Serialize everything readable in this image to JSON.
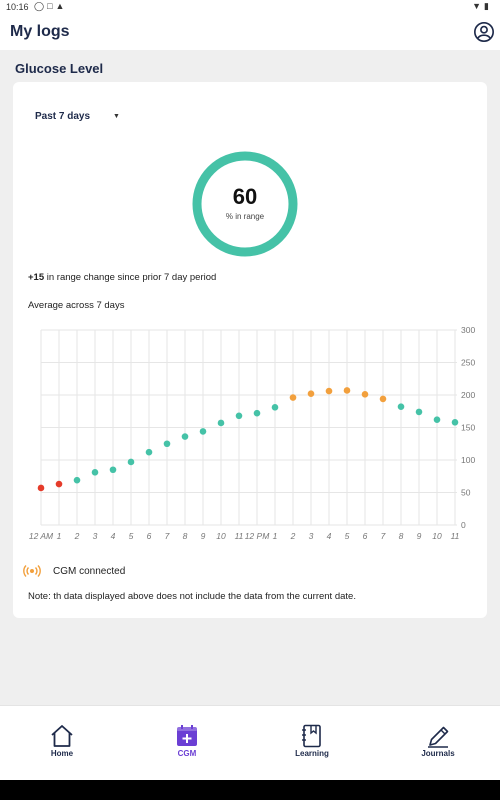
{
  "status_bar": {
    "time": "10:16"
  },
  "header": {
    "title": "My logs"
  },
  "section": {
    "title": "Glucose Level"
  },
  "filter": {
    "selected": "Past 7 days"
  },
  "gauge": {
    "value": "60",
    "label": "% in range",
    "fraction": 0.6
  },
  "change": {
    "delta": "+15",
    "text": " in range change since prior 7 day period"
  },
  "average": {
    "text": "Average across 7 days"
  },
  "chart_data": {
    "type": "scatter",
    "categories": [
      "12 AM",
      "1",
      "2",
      "3",
      "4",
      "5",
      "6",
      "7",
      "8",
      "9",
      "10",
      "11",
      "12 PM",
      "1",
      "2",
      "3",
      "4",
      "5",
      "6",
      "7",
      "8",
      "9",
      "10",
      "11"
    ],
    "values": [
      57,
      63,
      69,
      81,
      85,
      97,
      112,
      125,
      136,
      144,
      157,
      168,
      172,
      181,
      196,
      202,
      206,
      207,
      201,
      194,
      182,
      174,
      162,
      158
    ],
    "colors": [
      "#e53b2a",
      "#e53b2a",
      "#45c2a7",
      "#45c2a7",
      "#45c2a7",
      "#45c2a7",
      "#45c2a7",
      "#45c2a7",
      "#45c2a7",
      "#45c2a7",
      "#45c2a7",
      "#45c2a7",
      "#45c2a7",
      "#45c2a7",
      "#f2a03d",
      "#f2a03d",
      "#f2a03d",
      "#f2a03d",
      "#f2a03d",
      "#f2a03d",
      "#45c2a7",
      "#45c2a7",
      "#45c2a7",
      "#45c2a7"
    ],
    "yticks": [
      "0",
      "50",
      "100",
      "150",
      "200",
      "250",
      "300"
    ],
    "ylim": [
      0,
      300
    ],
    "grid": true,
    "y_axis_position": "right",
    "title": "",
    "xlabel": "",
    "ylabel": ""
  },
  "cgm": {
    "status": "CGM connected"
  },
  "note": {
    "text": "Note: th data displayed above does not include the data from the current date."
  },
  "nav": {
    "items": [
      {
        "label": "Home",
        "icon": "home-icon"
      },
      {
        "label": "CGM",
        "icon": "calendar-plus-icon"
      },
      {
        "label": "Learning",
        "icon": "book-icon"
      },
      {
        "label": "Journals",
        "icon": "pencil-icon"
      }
    ]
  },
  "colors": {
    "accent": "#6b3fd4",
    "gauge": "#45c2a7",
    "in_range": "#45c2a7",
    "low": "#e53b2a",
    "high": "#f2a03d",
    "cgm_icon": "#f2a03d"
  }
}
